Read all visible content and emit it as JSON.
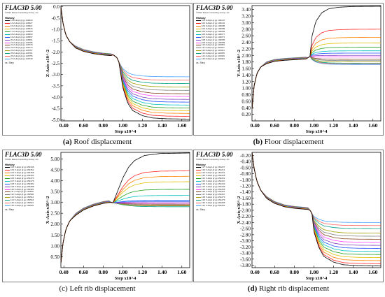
{
  "charts": [
    {
      "id": "a",
      "brand": "FLAC3D 5.00",
      "copyright": "©2012 Itasca Consulting Group, Inc.",
      "history_label": "History",
      "vs_label": "vs. Step",
      "legend": [
        "13 Z-displ gf gp 146633",
        "14 Z-displ gf gp 146627",
        "15 Z-displ gf gp 146621",
        "16 Z-displ gf gp 146615",
        "17 Z-displ gf gp 146609",
        "18 Z-displ gf gp 146603",
        "19 Z-displ gf gp 146597",
        "20 Z-displ gf gp 146591",
        "21 Z-displ gf gp 146785",
        "22 Z-displ gf gp 146779",
        "23 Z-displ gf gp 146773",
        "24 Z-displ gf gp 146767",
        "25 Z-displ gf gp 146761",
        "26 Z-displ gf gp 146755",
        "27 Z-displ gf gp 146749"
      ],
      "caption_tag": "(a)",
      "caption_text": " Roof displacement"
    },
    {
      "id": "b",
      "brand": "FLAC3D 5.00",
      "copyright": "©2012 Itasca Consulting Group, Inc.",
      "history_label": "History",
      "vs_label": "vs. Step",
      "legend": [
        "101 Z-displ gf gp 100107",
        "102 Z-displ gf gp 100101",
        "103 Z-displ gf gp 100095",
        "104 Z-displ gf gp 100089",
        "105 Z-displ gf gp 100083",
        "106 Z-displ gf gp 100077",
        "107 Z-displ gf gp 100071",
        "108 Z-displ gf gp 100065",
        "109 Z-displ gf gp 100059",
        "110 Z-displ gf gp 100053",
        "111 Z-displ gf gp 100047",
        "112 Z-displ gf gp 100041",
        "113 Z-displ gf gp 100035",
        "114 Z-displ gf gp 100029",
        "115 Z-displ gf gp 100023"
      ],
      "caption_tag": "(b)",
      "caption_text": " Floor displacement"
    },
    {
      "id": "c",
      "brand": "FLAC3D 5.00",
      "copyright": "©2012 Itasca Consulting Group, Inc.",
      "history_label": "History",
      "vs_label": "vs. Step",
      "legend": [
        "102 X-displ gf gp 153446",
        "103 X-displ gf gp 153452",
        "104 X-displ gf gp 153458",
        "105 X-displ gf gp 153464",
        "106 X-displ gf gp 153470",
        "107 X-displ gf gp 153476",
        "108 X-displ gf gp 153482",
        "109 X-displ gf gp 153488",
        "110 X-displ gf gp 153494",
        "111 X-displ gf gp 153500",
        "112 X-displ gf gp 153506",
        "113 X-displ gf gp 153512",
        "114 X-displ gf gp 153518",
        "115 X-displ gf gp 153524",
        "116 X-displ gf gp 153530"
      ],
      "caption_tag": "(c)",
      "caption_text": " Left rib displacement"
    },
    {
      "id": "d",
      "brand": "FLAC3D 5.00",
      "copyright": "©2012 Itasca Consulting Group, Inc.",
      "history_label": "History",
      "vs_label": "vs. Step",
      "legend": [
        "117 X-displ gf gp 152207",
        "118 X-displ gf gp 152213",
        "119 X-displ gf gp 152219",
        "120 X-displ gf gp 152225",
        "121 X-displ gf gp 152231",
        "122 X-displ gf gp 152237",
        "123 X-displ gf gp 152243",
        "124 X-displ gf gp 152249",
        "125 X-displ gf gp 152255",
        "126 X-displ gf gp 152261",
        "127 X-displ gf gp 152267",
        "128 X-displ gf gp 152273",
        "129 X-displ gf gp 152279",
        "130 X-displ gf gp 152285",
        "131 X-displ gf gp 152291"
      ],
      "caption_tag": "(d)",
      "caption_text": " Right rib displacement"
    }
  ],
  "colors": [
    "#000000",
    "#ff2020",
    "#ff8000",
    "#e0c000",
    "#20a020",
    "#00c0c0",
    "#2050ff",
    "#8040c0",
    "#ff40ff",
    "#804020",
    "#808080",
    "#a0a000",
    "#00a080",
    "#ff6060",
    "#40a0ff"
  ],
  "chart_data": [
    {
      "type": "line",
      "ylabel": "Z-Axis x10^-2",
      "xlabel": "Step x10^4",
      "xlim": [
        0.37,
        1.68
      ],
      "ylim": [
        -5.05,
        0.05
      ],
      "x_ticks": [
        "0.40",
        "0.60",
        "0.80",
        "1.00",
        "1.20",
        "1.40",
        "1.60"
      ],
      "y_ticks": [
        "0.0",
        "-0.5",
        "-1.0",
        "-1.5",
        "-2.0",
        "-2.5",
        "-3.0",
        "-3.5",
        "-4.0",
        "-4.5",
        "-5.0"
      ],
      "pre_x": [
        0.37,
        0.39,
        0.42,
        0.46,
        0.52,
        0.6,
        0.7,
        0.8,
        0.88
      ],
      "pre_y": [
        0.0,
        -0.7,
        -1.25,
        -1.55,
        -1.78,
        -1.93,
        -2.03,
        -2.09,
        -2.12
      ],
      "mid_x": [
        0.9,
        0.94,
        0.96
      ],
      "mid_y": [
        -2.12,
        -2.25,
        -2.45
      ],
      "post_x": [
        1.0,
        1.05,
        1.1,
        1.2,
        1.3,
        1.45,
        1.68
      ],
      "post_frac": [
        0.45,
        0.72,
        0.85,
        0.94,
        0.98,
        0.995,
        1.0
      ],
      "finals": [
        -4.97,
        -4.85,
        -4.72,
        -4.6,
        -4.48,
        -4.35,
        -4.22,
        -4.1,
        -3.97,
        -3.85,
        -3.7,
        -3.55,
        -3.4,
        -3.25,
        -3.1
      ]
    },
    {
      "type": "line",
      "ylabel": "Y-Axis x10^-2",
      "xlabel": "Step x10^4",
      "xlim": [
        0.37,
        1.68
      ],
      "ylim": [
        0.0,
        3.52
      ],
      "x_ticks": [
        "0.40",
        "0.60",
        "0.80",
        "1.00",
        "1.20",
        "1.40",
        "1.60"
      ],
      "y_ticks": [
        "0.20",
        "0.40",
        "0.60",
        "0.80",
        "1.00",
        "1.20",
        "1.40",
        "1.60",
        "1.80",
        "2.00",
        "2.20",
        "2.40",
        "2.60",
        "2.80",
        "3.00",
        "3.20",
        "3.40"
      ],
      "pre_x": [
        0.37,
        0.39,
        0.42,
        0.46,
        0.52,
        0.6,
        0.7,
        0.8,
        0.92
      ],
      "pre_y": [
        0.35,
        1.05,
        1.45,
        1.65,
        1.78,
        1.85,
        1.88,
        1.9,
        1.92
      ],
      "mid_x": [
        0.94,
        0.96
      ],
      "mid_y": [
        1.93,
        1.97
      ],
      "post_x": [
        0.98,
        1.02,
        1.08,
        1.15,
        1.25,
        1.4,
        1.68
      ],
      "post_frac": [
        0.4,
        0.7,
        0.87,
        0.95,
        0.98,
        0.995,
        1.0
      ],
      "finals": [
        3.5,
        2.8,
        2.55,
        2.38,
        2.25,
        2.14,
        2.07,
        2.0,
        1.95,
        1.88,
        1.84,
        1.8,
        1.76,
        1.74,
        1.72
      ]
    },
    {
      "type": "line",
      "ylabel": "X-Axis x10^-2",
      "xlabel": "Step x10^4",
      "xlim": [
        0.37,
        1.68
      ],
      "ylim": [
        0.0,
        5.3
      ],
      "x_ticks": [
        "0.40",
        "0.60",
        "0.80",
        "1.00",
        "1.20",
        "1.40",
        "1.60"
      ],
      "y_ticks": [
        "0.50",
        "1.00",
        "1.50",
        "2.00",
        "2.50",
        "3.00",
        "3.50",
        "4.00",
        "4.50",
        "5.00"
      ],
      "pre_x": [
        0.37,
        0.39,
        0.42,
        0.46,
        0.52,
        0.6,
        0.7,
        0.8,
        0.86
      ],
      "pre_y": [
        0.2,
        1.1,
        1.75,
        2.15,
        2.45,
        2.7,
        2.88,
        3.0,
        3.04
      ],
      "mid_x": [
        0.88,
        0.9
      ],
      "mid_y": [
        3.0,
        2.98
      ],
      "post_x": [
        0.94,
        1.0,
        1.06,
        1.12,
        1.22,
        1.38,
        1.68
      ],
      "post_frac": [
        0.2,
        0.5,
        0.72,
        0.85,
        0.95,
        0.99,
        1.0
      ],
      "finals": [
        5.27,
        4.45,
        4.2,
        3.95,
        3.6,
        3.32,
        3.1,
        3.02,
        2.96,
        2.92,
        2.88,
        2.84,
        2.8,
        2.86,
        3.05
      ]
    },
    {
      "type": "line",
      "ylabel": "X-Axis x10^-2",
      "xlabel": "Step x10^4",
      "xlim": [
        0.37,
        1.68
      ],
      "ylim": [
        -3.88,
        -0.1
      ],
      "x_ticks": [
        "0.40",
        "0.60",
        "0.80",
        "1.00",
        "1.20",
        "1.40",
        "1.60"
      ],
      "y_ticks": [
        "-0.20",
        "-0.40",
        "-0.60",
        "-0.80",
        "-1.00",
        "-1.20",
        "-1.40",
        "-1.60",
        "-1.80",
        "-2.00",
        "-2.20",
        "-2.40",
        "-2.60",
        "-2.80",
        "-3.00",
        "-3.20",
        "-3.40",
        "-3.60",
        "-3.80"
      ],
      "pre_x": [
        0.37,
        0.39,
        0.42,
        0.46,
        0.52,
        0.6,
        0.7,
        0.8,
        0.94
      ],
      "pre_y": [
        -0.1,
        -0.6,
        -1.05,
        -1.35,
        -1.58,
        -1.74,
        -1.85,
        -1.9,
        -1.94
      ],
      "mid_x": [
        0.96,
        0.98
      ],
      "mid_y": [
        -2.0,
        -2.1
      ],
      "post_x": [
        1.0,
        1.05,
        1.1,
        1.2,
        1.3,
        1.45,
        1.68
      ],
      "post_frac": [
        0.35,
        0.65,
        0.82,
        0.93,
        0.98,
        0.995,
        1.0
      ],
      "finals": [
        -3.82,
        -3.75,
        -3.65,
        -3.55,
        -3.45,
        -3.35,
        -3.25,
        -3.15,
        -3.05,
        -2.95,
        -2.85,
        -2.75,
        -2.6,
        -2.5,
        -2.4
      ]
    }
  ]
}
